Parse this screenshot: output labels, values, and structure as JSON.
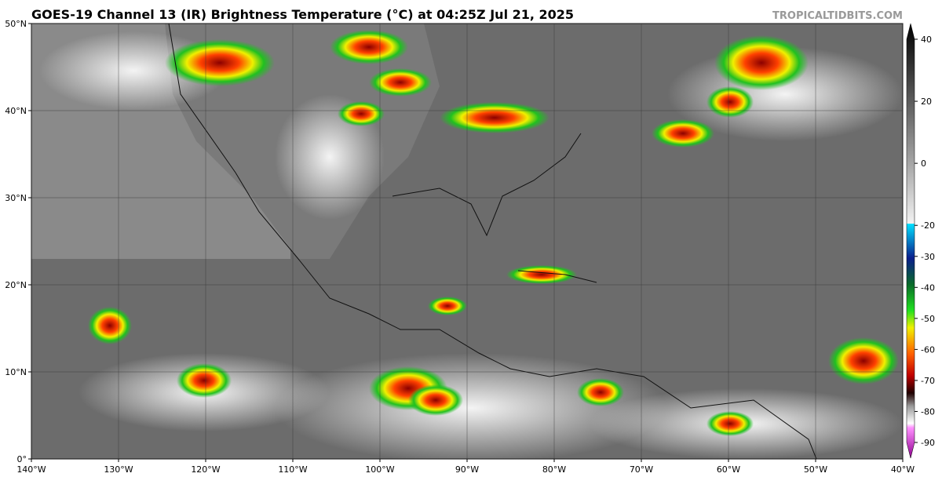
{
  "header": {
    "title": "GOES-19 Channel 13 (IR) Brightness Temperature (°C) at 04:25Z Jul 21, 2025",
    "credit": "TROPICALTIDBITS.COM"
  },
  "map": {
    "lon_range": [
      -140,
      -40
    ],
    "lat_range": [
      0,
      50
    ],
    "lon_ticks": [
      {
        "value": -140,
        "label": "140°W"
      },
      {
        "value": -130,
        "label": "130°W"
      },
      {
        "value": -120,
        "label": "120°W"
      },
      {
        "value": -110,
        "label": "110°W"
      },
      {
        "value": -100,
        "label": "100°W"
      },
      {
        "value": -90,
        "label": "90°W"
      },
      {
        "value": -80,
        "label": "80°W"
      },
      {
        "value": -70,
        "label": "70°W"
      },
      {
        "value": -60,
        "label": "60°W"
      },
      {
        "value": -50,
        "label": "50°W"
      },
      {
        "value": -40,
        "label": "40°W"
      }
    ],
    "lat_ticks": [
      {
        "value": 0,
        "label": "0°"
      },
      {
        "value": 10,
        "label": "10°N"
      },
      {
        "value": 20,
        "label": "20°N"
      },
      {
        "value": 30,
        "label": "30°N"
      },
      {
        "value": 40,
        "label": "40°N"
      },
      {
        "value": 50,
        "label": "50°N"
      }
    ],
    "colorbar": {
      "range": [
        -90,
        40
      ],
      "ticks": [
        40,
        20,
        0,
        -20,
        -30,
        -40,
        -50,
        -60,
        -70,
        -80,
        -90
      ]
    }
  }
}
